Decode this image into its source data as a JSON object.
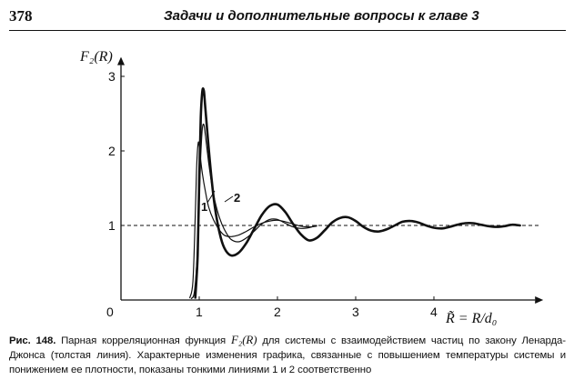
{
  "header": {
    "page_number": "378",
    "running_title": "Задачи и дополнительные вопросы к главе 3"
  },
  "figure": {
    "y_axis_label": "F₂(R)",
    "x_axis_label": "R̃ = R/d₀",
    "curve_labels": [
      "1",
      "2"
    ],
    "colors": {
      "ink": "#111111",
      "paper": "#ffffff"
    }
  },
  "chart_data": {
    "type": "line",
    "ylabel": "F₂(R)",
    "xlabel": "R̃ = R/d₀",
    "xlim": [
      0,
      5.2
    ],
    "ylim": [
      0,
      3.2
    ],
    "x_ticks": [
      "0",
      "1",
      "2",
      "3",
      "4"
    ],
    "y_ticks": [
      "1",
      "2",
      "3"
    ],
    "reference_line": {
      "y": 1,
      "style": "dashed"
    },
    "grid": false,
    "series": [
      {
        "style": "thick",
        "x": [
          0.95,
          0.98,
          1.0,
          1.02,
          1.04,
          1.06,
          1.08,
          1.12,
          1.16,
          1.2,
          1.26,
          1.32,
          1.4,
          1.5,
          1.6,
          1.7,
          1.8,
          1.9,
          2.0,
          2.1,
          2.2,
          2.3,
          2.4,
          2.5,
          2.6,
          2.7,
          2.8,
          2.9,
          3.0,
          3.1,
          3.2,
          3.3,
          3.4,
          3.5,
          3.6,
          3.7,
          3.8,
          3.9,
          4.0,
          4.1,
          4.2,
          4.3,
          4.4,
          4.5,
          4.6,
          4.7,
          4.8,
          4.9,
          5.0,
          5.1
        ],
        "y": [
          0.03,
          0.6,
          1.6,
          2.45,
          2.8,
          2.8,
          2.55,
          2.05,
          1.6,
          1.25,
          0.9,
          0.7,
          0.6,
          0.63,
          0.76,
          0.95,
          1.14,
          1.26,
          1.28,
          1.18,
          1.02,
          0.88,
          0.8,
          0.83,
          0.93,
          1.04,
          1.1,
          1.11,
          1.06,
          0.98,
          0.93,
          0.92,
          0.95,
          1.0,
          1.05,
          1.06,
          1.04,
          1.0,
          0.97,
          0.96,
          0.98,
          1.01,
          1.03,
          1.03,
          1.01,
          0.99,
          0.98,
          0.99,
          1.01,
          1.0
        ]
      },
      {
        "name": "1",
        "style": "thin",
        "x": [
          0.88,
          0.92,
          0.95,
          0.97,
          0.99,
          1.01,
          1.04,
          1.08,
          1.12,
          1.18,
          1.25,
          1.32,
          1.4,
          1.5,
          1.6,
          1.7,
          1.8,
          1.9,
          2.0,
          2.1,
          2.2,
          2.3,
          2.4,
          2.5
        ],
        "y": [
          0.03,
          0.25,
          1.15,
          1.85,
          2.12,
          1.95,
          1.7,
          1.45,
          1.25,
          1.08,
          0.95,
          0.87,
          0.85,
          0.87,
          0.92,
          0.98,
          1.03,
          1.06,
          1.07,
          1.05,
          1.02,
          0.99,
          0.98,
          0.99
        ]
      },
      {
        "name": "2",
        "style": "thin",
        "x": [
          0.9,
          0.94,
          0.98,
          1.0,
          1.02,
          1.04,
          1.06,
          1.08,
          1.12,
          1.16,
          1.2,
          1.26,
          1.32,
          1.4,
          1.5,
          1.6,
          1.7,
          1.8,
          1.9,
          2.0,
          2.1,
          2.2,
          2.3,
          2.4,
          2.5
        ],
        "y": [
          0.02,
          0.12,
          0.7,
          1.35,
          1.95,
          2.3,
          2.35,
          2.2,
          1.85,
          1.55,
          1.33,
          1.1,
          0.95,
          0.82,
          0.78,
          0.83,
          0.92,
          1.02,
          1.08,
          1.08,
          1.03,
          0.98,
          0.96,
          0.97,
          1.0
        ]
      }
    ]
  },
  "caption": {
    "label": "Рис. 148.",
    "part1": "Парная корреляционная функция",
    "formula": "F₂(R)",
    "part2": "для системы с взаимодействием частиц по закону Ленарда-Джонса (толстая линия). Характерные изменения графика, связанные с повышением температуры системы и понижением ее плотности, показаны тонкими линиями 1 и 2 соответственно"
  }
}
